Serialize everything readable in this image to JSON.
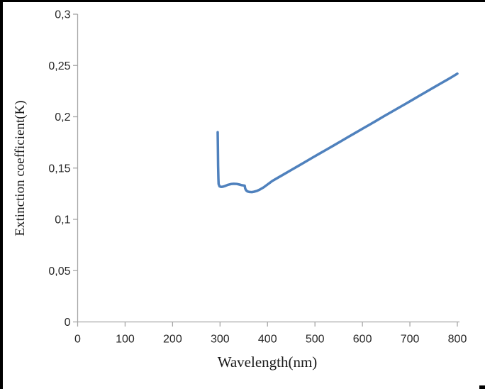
{
  "figure": {
    "background_color": "#ffffff",
    "border_color": "#000000"
  },
  "chart_data": {
    "type": "line",
    "title": "",
    "xlabel": "Wavelength(nm)",
    "ylabel": "Extinction coefficient(K)",
    "xlim": [
      0,
      800
    ],
    "ylim": [
      0,
      0.3
    ],
    "grid": false,
    "legend": "none",
    "axis_color": "#a6a6a6",
    "tick_label_color": "#262626",
    "x_ticks": [
      {
        "value": 0,
        "label": "0"
      },
      {
        "value": 100,
        "label": "100"
      },
      {
        "value": 200,
        "label": "200"
      },
      {
        "value": 300,
        "label": "300"
      },
      {
        "value": 400,
        "label": "400"
      },
      {
        "value": 500,
        "label": "500"
      },
      {
        "value": 600,
        "label": "600"
      },
      {
        "value": 700,
        "label": "700"
      },
      {
        "value": 800,
        "label": "800"
      }
    ],
    "y_ticks": [
      {
        "value": 0,
        "label": "0"
      },
      {
        "value": 0.05,
        "label": "0,05"
      },
      {
        "value": 0.1,
        "label": "0,1"
      },
      {
        "value": 0.15,
        "label": "0,15"
      },
      {
        "value": 0.2,
        "label": "0,2"
      },
      {
        "value": 0.25,
        "label": "0,25"
      },
      {
        "value": 0.3,
        "label": "0,3"
      }
    ],
    "series": [
      {
        "name": "extinction-coefficient",
        "color": "#4f81bd",
        "width": 3.5,
        "points": [
          [
            295,
            0.185
          ],
          [
            295.5,
            0.17
          ],
          [
            296,
            0.152
          ],
          [
            296.5,
            0.14
          ],
          [
            297,
            0.1345
          ],
          [
            299,
            0.1322
          ],
          [
            302,
            0.1316
          ],
          [
            306,
            0.1318
          ],
          [
            311,
            0.1326
          ],
          [
            317,
            0.1337
          ],
          [
            323,
            0.1344
          ],
          [
            329,
            0.1347
          ],
          [
            335,
            0.1345
          ],
          [
            341,
            0.1339
          ],
          [
            346,
            0.1333
          ],
          [
            350,
            0.133
          ],
          [
            352,
            0.1328
          ],
          [
            353,
            0.13
          ],
          [
            355,
            0.1283
          ],
          [
            358,
            0.1272
          ],
          [
            362,
            0.1267
          ],
          [
            367,
            0.1266
          ],
          [
            372,
            0.127
          ],
          [
            377,
            0.1276
          ],
          [
            384,
            0.1291
          ],
          [
            392,
            0.1312
          ],
          [
            400,
            0.134
          ],
          [
            410,
            0.1374
          ],
          [
            422,
            0.1406
          ],
          [
            435,
            0.1441
          ],
          [
            450,
            0.1481
          ],
          [
            465,
            0.1521
          ],
          [
            480,
            0.1561
          ],
          [
            495,
            0.1602
          ],
          [
            510,
            0.1642
          ],
          [
            525,
            0.1682
          ],
          [
            540,
            0.1722
          ],
          [
            555,
            0.1762
          ],
          [
            570,
            0.1803
          ],
          [
            585,
            0.1843
          ],
          [
            600,
            0.1883
          ],
          [
            615,
            0.1923
          ],
          [
            630,
            0.1963
          ],
          [
            645,
            0.2004
          ],
          [
            660,
            0.2044
          ],
          [
            675,
            0.2084
          ],
          [
            690,
            0.2124
          ],
          [
            705,
            0.2164
          ],
          [
            720,
            0.2205
          ],
          [
            735,
            0.2245
          ],
          [
            750,
            0.2285
          ],
          [
            765,
            0.2325
          ],
          [
            780,
            0.2365
          ],
          [
            790,
            0.2392
          ],
          [
            800,
            0.242
          ]
        ]
      }
    ]
  }
}
